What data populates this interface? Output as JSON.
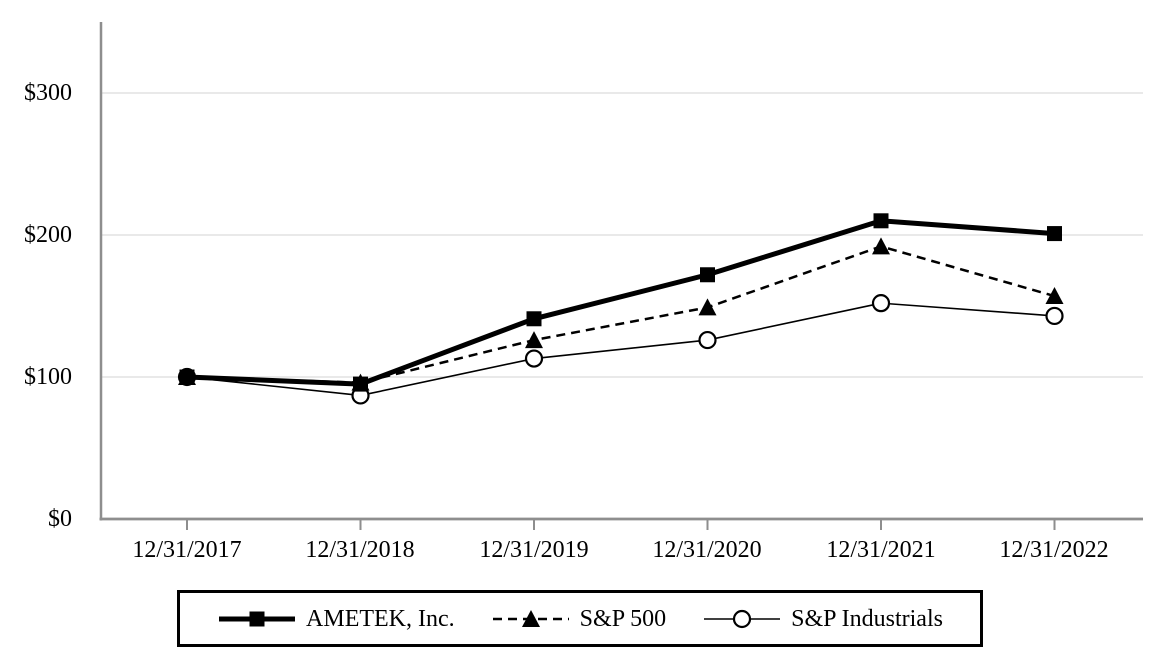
{
  "chart_data": {
    "type": "line",
    "title": "",
    "xlabel": "",
    "ylabel": "",
    "x": [
      "12/31/2017",
      "12/31/2018",
      "12/31/2019",
      "12/31/2020",
      "12/31/2021",
      "12/31/2022"
    ],
    "y_ticks": [
      "$0",
      "$100",
      "$200",
      "$300"
    ],
    "y_tick_values": [
      0,
      100,
      200,
      300
    ],
    "ylim": [
      0,
      350
    ],
    "grid": "horizontal-only",
    "legend_position": "bottom-centered-boxed",
    "series": [
      {
        "name": "AMETEK, Inc.",
        "marker": "filled-square",
        "line_style": "solid-thick",
        "color": "#000000",
        "values": [
          100,
          95,
          141,
          172,
          210,
          201
        ]
      },
      {
        "name": "S&P 500",
        "marker": "filled-triangle",
        "line_style": "dashed",
        "color": "#000000",
        "values": [
          100,
          96,
          126,
          149,
          192,
          157
        ]
      },
      {
        "name": "S&P Industrials",
        "marker": "open-circle",
        "line_style": "solid-thin",
        "color": "#000000",
        "values": [
          100,
          87,
          113,
          126,
          152,
          143
        ]
      }
    ],
    "colors": {
      "background": "#ffffff",
      "grid": "#e2e2e2",
      "axis": "#8e8e8e",
      "series": "#000000"
    }
  }
}
